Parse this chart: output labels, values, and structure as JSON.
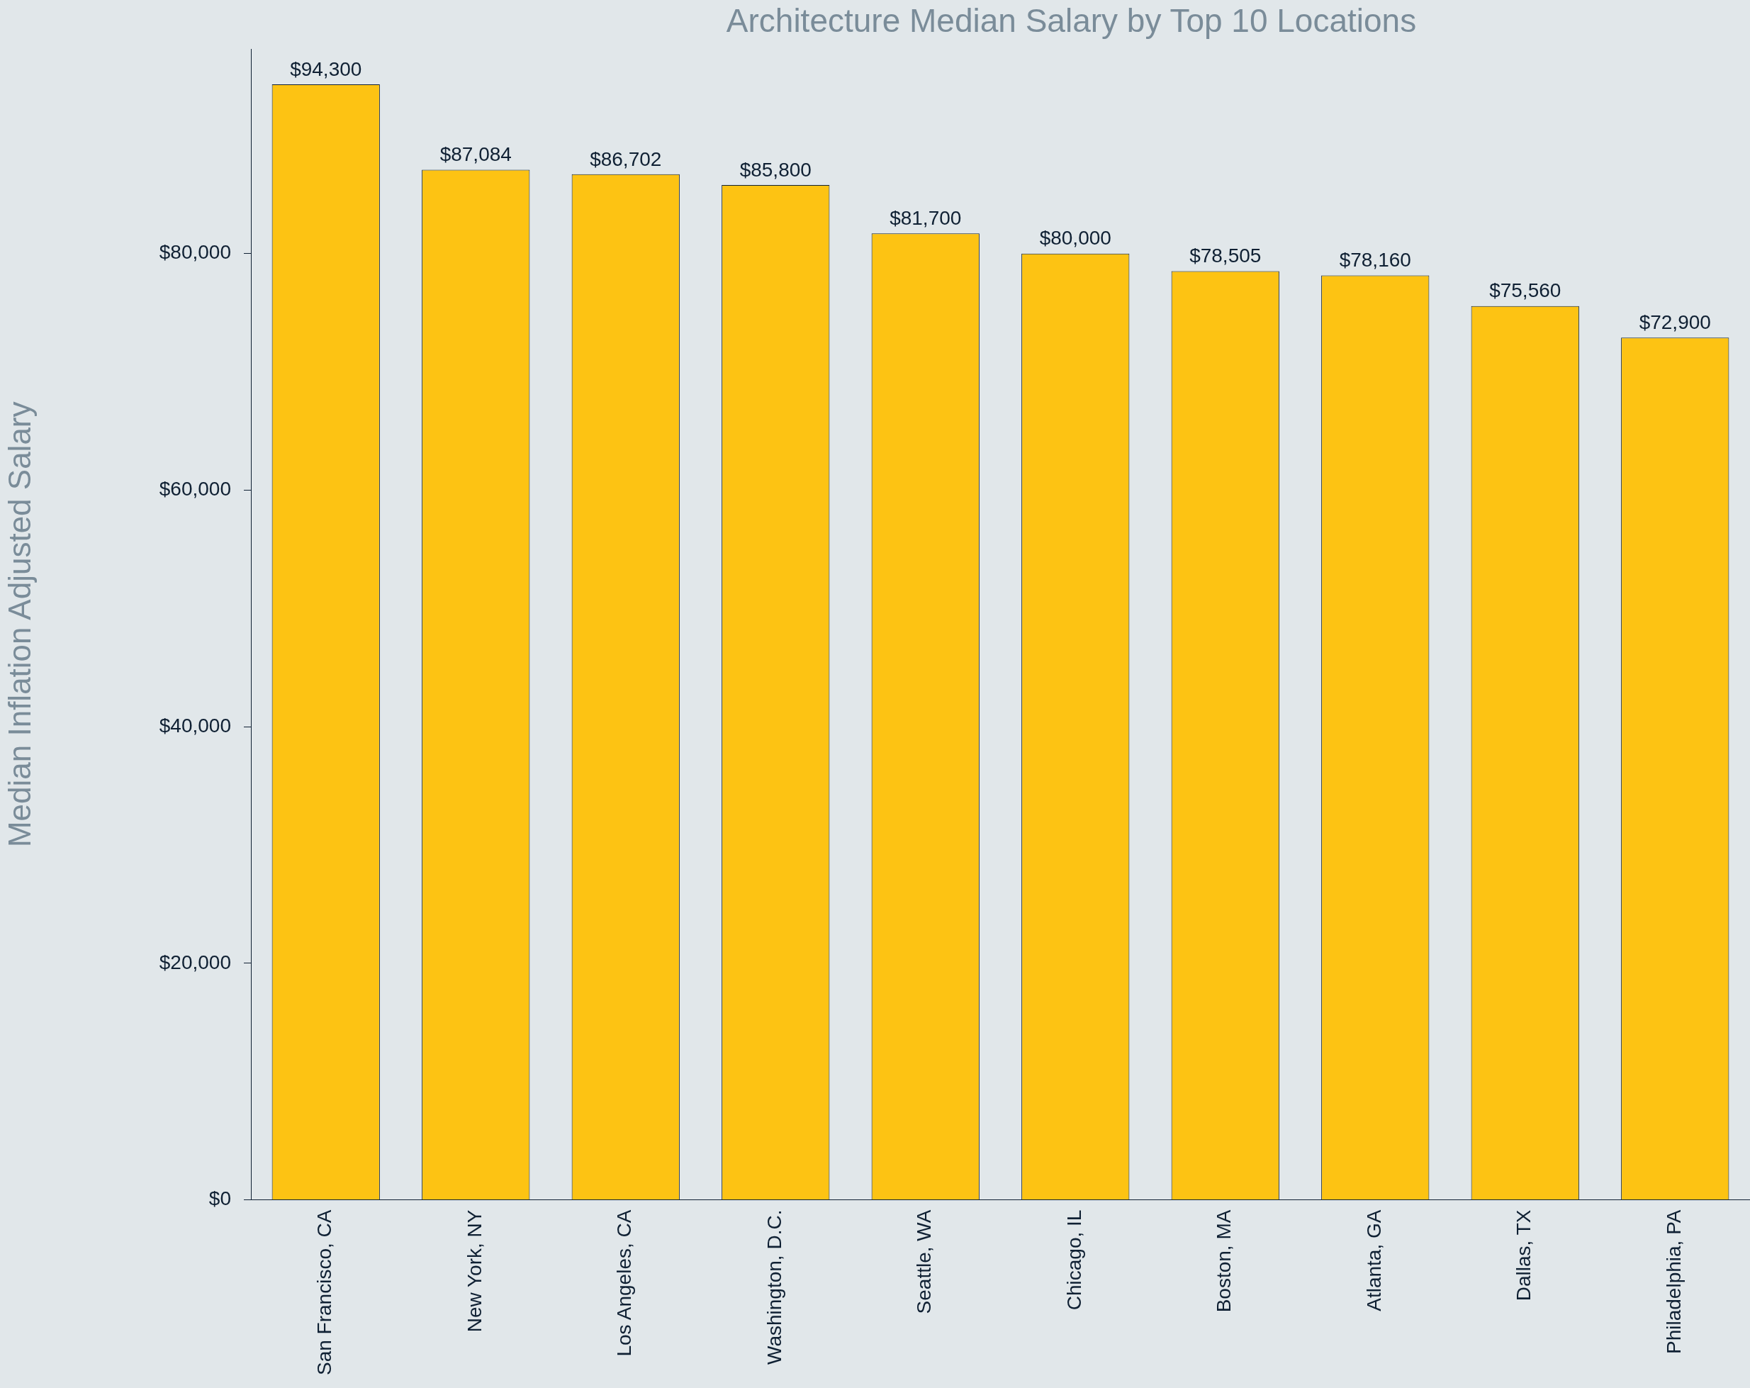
{
  "chart_data": {
    "type": "bar",
    "title": "Architecture Median Salary by Top 10 Locations",
    "ylabel": "Median Inflation Adjusted Salary",
    "categories": [
      "San Francisco, CA",
      "New York, NY",
      "Los Angeles, CA",
      "Washington, D.C.",
      "Seattle, WA",
      "Chicago, IL",
      "Boston, MA",
      "Atlanta, GA",
      "Dallas, TX",
      "Philadelphia, PA"
    ],
    "values": [
      94300,
      87084,
      86702,
      85800,
      81700,
      80000,
      78505,
      78160,
      75560,
      72900
    ],
    "value_labels": [
      "$94,300",
      "$87,084",
      "$86,702",
      "$85,800",
      "$81,700",
      "$80,000",
      "$78,505",
      "$78,160",
      "$75,560",
      "$72,900"
    ],
    "color": "#fdc313",
    "ylim": [
      0,
      97300
    ],
    "yticks": [
      {
        "value": 0,
        "label": "$0"
      },
      {
        "value": 20000,
        "label": "$20,000"
      },
      {
        "value": 40000,
        "label": "$40,000"
      },
      {
        "value": 60000,
        "label": "$60,000"
      },
      {
        "value": 80000,
        "label": "$80,000"
      }
    ],
    "grid": false,
    "legend": false
  }
}
